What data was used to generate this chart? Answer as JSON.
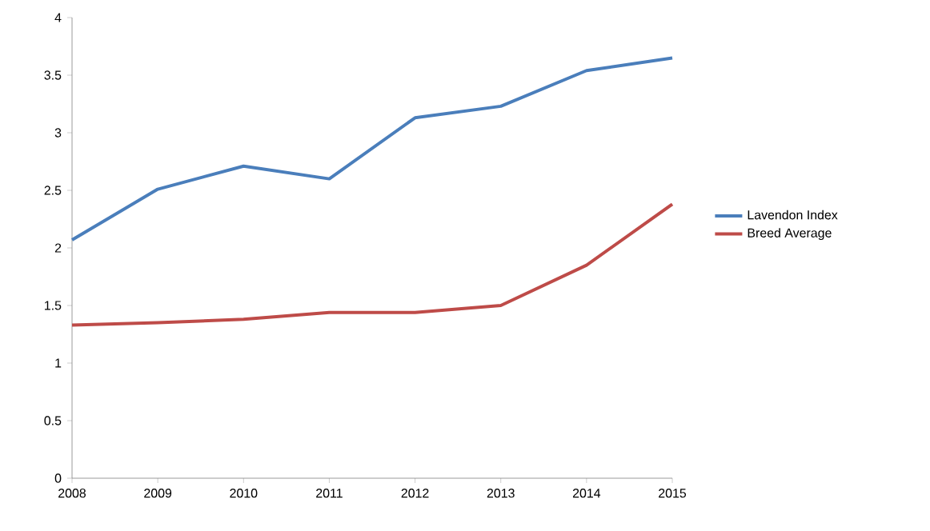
{
  "chart_data": {
    "type": "line",
    "categories": [
      "2008",
      "2009",
      "2010",
      "2011",
      "2012",
      "2013",
      "2014",
      "2015"
    ],
    "series": [
      {
        "name": "Lavendon Index",
        "color": "#4a7ebb",
        "values": [
          2.07,
          2.51,
          2.71,
          2.6,
          3.13,
          3.23,
          3.54,
          3.65
        ]
      },
      {
        "name": "Breed Average",
        "color": "#be4b48",
        "values": [
          1.33,
          1.35,
          1.38,
          1.44,
          1.44,
          1.5,
          1.85,
          2.38
        ]
      }
    ],
    "ylim": [
      0,
      4
    ],
    "yticks": [
      0,
      0.5,
      1,
      1.5,
      2,
      2.5,
      3,
      3.5,
      4
    ],
    "grid": false,
    "legend": "right",
    "marker": "none",
    "line_style": "solid"
  }
}
